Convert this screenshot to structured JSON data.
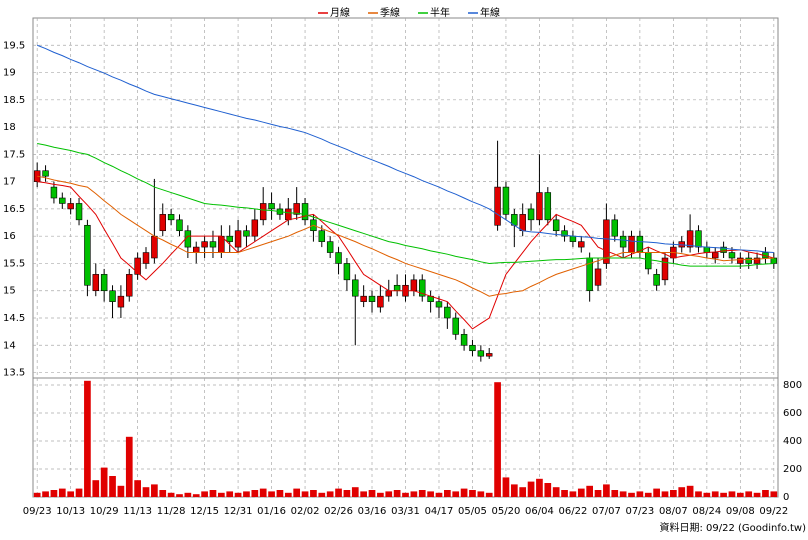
{
  "chart_data": [
    {
      "type": "candlestick",
      "categories": [
        "09/23",
        null,
        null,
        null,
        "10/13",
        null,
        null,
        null,
        "10/29",
        null,
        null,
        null,
        "11/13",
        null,
        null,
        null,
        "11/28",
        null,
        null,
        null,
        "12/15",
        null,
        null,
        null,
        "12/31",
        null,
        null,
        null,
        "01/16",
        null,
        null,
        null,
        "02/02",
        null,
        null,
        null,
        "02/26",
        null,
        null,
        null,
        "03/16",
        null,
        null,
        null,
        "03/31",
        null,
        null,
        null,
        "04/17",
        null,
        null,
        null,
        "05/05",
        null,
        null,
        null,
        "05/20",
        null,
        null,
        null,
        "06/04",
        null,
        null,
        null,
        "06/22",
        null,
        null,
        null,
        "07/07",
        null,
        null,
        null,
        "07/23",
        null,
        null,
        null,
        "08/07",
        null,
        null,
        null,
        "08/24",
        null,
        null,
        null,
        "09/08",
        null,
        null,
        null,
        "09/22"
      ],
      "open": [
        17.0,
        17.2,
        16.9,
        16.7,
        16.5,
        16.6,
        16.2,
        15.0,
        15.3,
        15.0,
        14.7,
        14.9,
        15.3,
        15.5,
        15.6,
        16.1,
        16.4,
        16.3,
        16.1,
        15.7,
        15.8,
        15.9,
        15.7,
        16.0,
        15.8,
        16.1,
        16.0,
        16.3,
        16.6,
        16.5,
        16.3,
        16.4,
        16.6,
        16.3,
        16.1,
        15.9,
        15.7,
        15.5,
        15.2,
        14.8,
        14.9,
        14.7,
        14.9,
        15.1,
        14.9,
        15.0,
        15.2,
        14.9,
        14.8,
        14.7,
        14.5,
        14.2,
        14.0,
        13.9,
        13.8,
        16.2,
        16.9,
        16.4,
        16.1,
        16.5,
        16.3,
        16.8,
        16.3,
        16.1,
        16.0,
        15.8,
        15.6,
        15.1,
        15.5,
        16.3,
        16.0,
        15.7,
        16.0,
        15.7,
        15.3,
        15.2,
        15.6,
        15.8,
        15.8,
        16.1,
        15.8,
        15.6,
        15.8,
        15.7,
        15.5,
        15.6,
        15.5,
        15.7,
        15.6
      ],
      "high": [
        17.35,
        17.3,
        17.0,
        16.8,
        16.7,
        16.7,
        16.3,
        15.5,
        15.4,
        15.1,
        15.1,
        15.4,
        15.7,
        15.8,
        17.05,
        16.6,
        16.5,
        16.4,
        16.2,
        15.9,
        16.0,
        16.1,
        16.2,
        16.2,
        16.3,
        16.2,
        16.5,
        16.9,
        16.8,
        16.6,
        16.7,
        16.9,
        16.7,
        16.4,
        16.2,
        16.0,
        15.8,
        15.6,
        15.3,
        15.1,
        15.0,
        15.1,
        15.2,
        15.3,
        15.3,
        15.3,
        15.3,
        15.0,
        14.9,
        14.8,
        14.6,
        14.3,
        14.1,
        14.0,
        13.95,
        17.75,
        17.0,
        16.5,
        16.6,
        16.6,
        17.5,
        16.9,
        16.4,
        16.2,
        16.1,
        16.0,
        15.7,
        15.6,
        16.6,
        16.4,
        16.1,
        16.1,
        16.1,
        15.8,
        15.4,
        15.7,
        15.9,
        16.0,
        16.4,
        16.2,
        15.9,
        15.8,
        15.9,
        15.8,
        15.7,
        15.7,
        15.7,
        15.8,
        15.7
      ],
      "low": [
        16.9,
        17.0,
        16.6,
        16.5,
        16.4,
        16.2,
        14.9,
        14.9,
        14.8,
        14.5,
        14.5,
        14.8,
        15.2,
        15.4,
        15.5,
        16.0,
        16.2,
        16.0,
        15.6,
        15.5,
        15.6,
        15.6,
        15.6,
        15.7,
        15.7,
        15.8,
        15.9,
        16.2,
        16.3,
        16.3,
        16.2,
        16.3,
        16.2,
        15.9,
        15.8,
        15.6,
        15.3,
        15.0,
        14.0,
        14.7,
        14.6,
        14.6,
        14.8,
        14.9,
        14.8,
        14.9,
        14.8,
        14.6,
        14.5,
        14.3,
        14.1,
        13.9,
        13.8,
        13.7,
        13.75,
        16.1,
        16.3,
        15.8,
        16.0,
        16.1,
        16.2,
        16.2,
        16.0,
        15.9,
        15.8,
        15.7,
        14.8,
        15.0,
        15.4,
        15.9,
        15.6,
        15.6,
        15.6,
        15.3,
        15.0,
        15.1,
        15.5,
        15.7,
        15.7,
        15.7,
        15.6,
        15.5,
        15.6,
        15.5,
        15.4,
        15.4,
        15.4,
        15.5,
        15.4
      ],
      "close": [
        17.2,
        17.1,
        16.7,
        16.6,
        16.6,
        16.3,
        15.1,
        15.3,
        15.0,
        14.8,
        14.9,
        15.3,
        15.6,
        15.7,
        16.0,
        16.4,
        16.3,
        16.1,
        15.8,
        15.8,
        15.9,
        15.8,
        16.0,
        15.9,
        16.1,
        16.0,
        16.3,
        16.6,
        16.5,
        16.4,
        16.5,
        16.6,
        16.3,
        16.1,
        15.9,
        15.7,
        15.5,
        15.2,
        14.9,
        14.9,
        14.8,
        14.9,
        15.0,
        15.0,
        15.1,
        15.2,
        14.9,
        14.8,
        14.7,
        14.5,
        14.2,
        14.0,
        13.9,
        13.8,
        13.85,
        16.9,
        16.4,
        16.2,
        16.4,
        16.3,
        16.8,
        16.3,
        16.1,
        16.0,
        15.9,
        15.9,
        15.0,
        15.4,
        16.3,
        16.0,
        15.8,
        16.0,
        15.7,
        15.4,
        15.1,
        15.6,
        15.8,
        15.9,
        16.1,
        15.8,
        15.7,
        15.7,
        15.7,
        15.6,
        15.6,
        15.5,
        15.6,
        15.6,
        15.5
      ],
      "up_color": "#e00000",
      "down_color": "#00c000",
      "series": [
        {
          "name": "月線",
          "color": "#e00000",
          "values": [
            17.0,
            16.98,
            16.95,
            16.93,
            16.9,
            16.73,
            16.57,
            16.4,
            16.13,
            15.87,
            15.6,
            15.47,
            15.33,
            15.2,
            15.35,
            15.5,
            15.67,
            15.83,
            16.0,
            16.0,
            16.0,
            16.0,
            16.0,
            15.85,
            15.7,
            15.8,
            15.9,
            16.0,
            16.1,
            16.2,
            16.3,
            16.33,
            16.37,
            16.4,
            16.27,
            16.13,
            16.0,
            15.77,
            15.53,
            15.3,
            15.2,
            15.1,
            15.0,
            15.0,
            15.0,
            15.0,
            14.95,
            14.9,
            14.85,
            14.8,
            14.63,
            14.47,
            14.3,
            14.4,
            14.5,
            14.9,
            15.3,
            15.5,
            15.7,
            15.9,
            16.07,
            16.23,
            16.4,
            16.33,
            16.27,
            16.2,
            16.0,
            15.8,
            15.73,
            15.67,
            15.6,
            15.67,
            15.73,
            15.8,
            15.73,
            15.67,
            15.6,
            15.63,
            15.65,
            15.68,
            15.7,
            15.71,
            15.73,
            15.74,
            15.75,
            15.71,
            15.68,
            15.64,
            15.6
          ]
        },
        {
          "name": "季線",
          "color": "#e06000",
          "values": [
            17.1,
            17.07,
            17.03,
            17.0,
            16.97,
            16.93,
            16.9,
            16.78,
            16.65,
            16.53,
            16.4,
            16.3,
            16.2,
            16.1,
            16.0,
            15.93,
            15.85,
            15.78,
            15.7,
            15.7,
            15.7,
            15.7,
            15.7,
            15.7,
            15.7,
            15.75,
            15.8,
            15.85,
            15.9,
            15.95,
            16.0,
            16.07,
            16.13,
            16.2,
            16.14,
            16.08,
            16.02,
            15.96,
            15.9,
            15.83,
            15.77,
            15.7,
            15.63,
            15.57,
            15.5,
            15.45,
            15.4,
            15.35,
            15.3,
            15.25,
            15.2,
            15.13,
            15.05,
            14.98,
            14.9,
            14.93,
            14.95,
            14.98,
            15.0,
            15.08,
            15.15,
            15.23,
            15.3,
            15.35,
            15.4,
            15.45,
            15.5,
            15.55,
            15.6,
            15.65,
            15.7,
            15.7,
            15.7,
            15.7,
            15.7,
            15.7,
            15.7,
            15.68,
            15.65,
            15.63,
            15.6,
            15.58,
            15.55,
            15.56,
            15.57,
            15.57,
            15.58,
            15.59,
            15.6
          ]
        },
        {
          "name": "半年",
          "color": "#00c000",
          "values": [
            17.7,
            17.67,
            17.63,
            17.6,
            17.57,
            17.53,
            17.5,
            17.43,
            17.35,
            17.28,
            17.2,
            17.13,
            17.05,
            16.98,
            16.9,
            16.85,
            16.8,
            16.75,
            16.7,
            16.65,
            16.6,
            16.58,
            16.57,
            16.55,
            16.53,
            16.52,
            16.5,
            16.48,
            16.47,
            16.45,
            16.43,
            16.42,
            16.4,
            16.35,
            16.3,
            16.25,
            16.2,
            16.15,
            16.1,
            16.05,
            16.0,
            15.95,
            15.9,
            15.87,
            15.83,
            15.8,
            15.77,
            15.73,
            15.7,
            15.67,
            15.63,
            15.6,
            15.57,
            15.53,
            15.5,
            15.51,
            15.52,
            15.52,
            15.53,
            15.54,
            15.55,
            15.56,
            15.57,
            15.57,
            15.58,
            15.59,
            15.6,
            15.6,
            15.6,
            15.6,
            15.6,
            15.6,
            15.6,
            15.57,
            15.55,
            15.52,
            15.5,
            15.47,
            15.45,
            15.45,
            15.45,
            15.45,
            15.45,
            15.45,
            15.45,
            15.46,
            15.48,
            15.49,
            15.5
          ]
        },
        {
          "name": "年線",
          "color": "#2060d0",
          "values": [
            19.5,
            19.44,
            19.37,
            19.31,
            19.24,
            19.18,
            19.11,
            19.05,
            18.99,
            18.92,
            18.86,
            18.79,
            18.73,
            18.66,
            18.6,
            18.56,
            18.52,
            18.48,
            18.44,
            18.4,
            18.36,
            18.32,
            18.28,
            18.24,
            18.2,
            18.16,
            18.13,
            18.09,
            18.05,
            18.01,
            17.98,
            17.94,
            17.9,
            17.84,
            17.78,
            17.71,
            17.65,
            17.59,
            17.52,
            17.46,
            17.4,
            17.34,
            17.28,
            17.21,
            17.15,
            17.09,
            17.02,
            16.96,
            16.9,
            16.83,
            16.77,
            16.7,
            16.63,
            16.57,
            16.5,
            16.4,
            16.3,
            16.2,
            16.1,
            16.08,
            16.07,
            16.05,
            16.03,
            16.02,
            16.0,
            15.99,
            15.98,
            15.96,
            15.95,
            15.94,
            15.93,
            15.91,
            15.9,
            15.89,
            15.88,
            15.86,
            15.85,
            15.84,
            15.83,
            15.81,
            15.8,
            15.79,
            15.78,
            15.76,
            15.75,
            15.74,
            15.73,
            15.71,
            15.7
          ]
        }
      ],
      "ylim": [
        13.4,
        20.0
      ],
      "yticks": [
        13.5,
        14,
        14.5,
        15,
        15.5,
        16,
        16.5,
        17,
        17.5,
        18,
        18.5,
        19,
        19.5
      ],
      "grid": true,
      "legend": "top"
    },
    {
      "type": "bar",
      "values": [
        30,
        40,
        50,
        60,
        40,
        60,
        830,
        120,
        210,
        150,
        80,
        430,
        120,
        70,
        90,
        50,
        30,
        20,
        30,
        20,
        40,
        50,
        30,
        40,
        30,
        40,
        50,
        60,
        40,
        50,
        30,
        60,
        40,
        50,
        30,
        40,
        60,
        50,
        70,
        40,
        50,
        30,
        40,
        50,
        30,
        40,
        50,
        40,
        30,
        50,
        40,
        60,
        50,
        40,
        30,
        820,
        140,
        90,
        70,
        110,
        130,
        100,
        70,
        50,
        40,
        60,
        80,
        50,
        90,
        50,
        40,
        30,
        40,
        30,
        60,
        40,
        50,
        70,
        80,
        40,
        30,
        40,
        30,
        40,
        30,
        40,
        30,
        50,
        40
      ],
      "color": "#e00000",
      "ylim": [
        0,
        850
      ],
      "yticks": [
        0,
        200,
        400,
        600,
        800
      ],
      "grid": true,
      "note": "資料日期: 09/22 (Goodinfo.tw)"
    }
  ]
}
